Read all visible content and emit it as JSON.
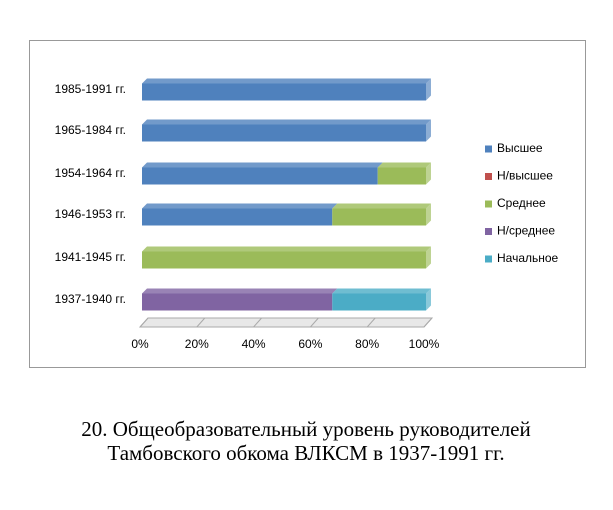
{
  "chart_data": {
    "type": "stacked-bar-horizontal",
    "categories": [
      "1985-1991 гг.",
      "1965-1984 гг.",
      "1954-1964 гг.",
      "1946-1953 гг.",
      "1941-1945 гг.",
      "1937-1940 гг."
    ],
    "series": [
      {
        "name": "Высшее",
        "color": "#4f81bd",
        "values": [
          100,
          100,
          83,
          67,
          0,
          0
        ]
      },
      {
        "name": "Н/высшее",
        "color": "#c0504d",
        "values": [
          0,
          0,
          0,
          0,
          0,
          0
        ]
      },
      {
        "name": "Среднее",
        "color": "#9bbb59",
        "values": [
          0,
          0,
          17,
          33,
          100,
          0
        ]
      },
      {
        "name": "Н/среднее",
        "color": "#8064a2",
        "values": [
          0,
          0,
          0,
          0,
          0,
          67
        ]
      },
      {
        "name": "Начальное",
        "color": "#4bacc6",
        "values": [
          0,
          0,
          0,
          0,
          0,
          33
        ]
      }
    ],
    "xlim": [
      0,
      100
    ],
    "xticks": [
      {
        "value": 0,
        "label": "0%"
      },
      {
        "value": 20,
        "label": "20%"
      },
      {
        "value": 40,
        "label": "40%"
      },
      {
        "value": 60,
        "label": "60%"
      },
      {
        "value": 80,
        "label": "80%"
      },
      {
        "value": 100,
        "label": "100%"
      }
    ],
    "legend": "right",
    "caption": [
      "20. Общеобразовательный уровень руководителей",
      "Тамбовского обкома ВЛКСМ в 1937-1991 гг."
    ]
  }
}
